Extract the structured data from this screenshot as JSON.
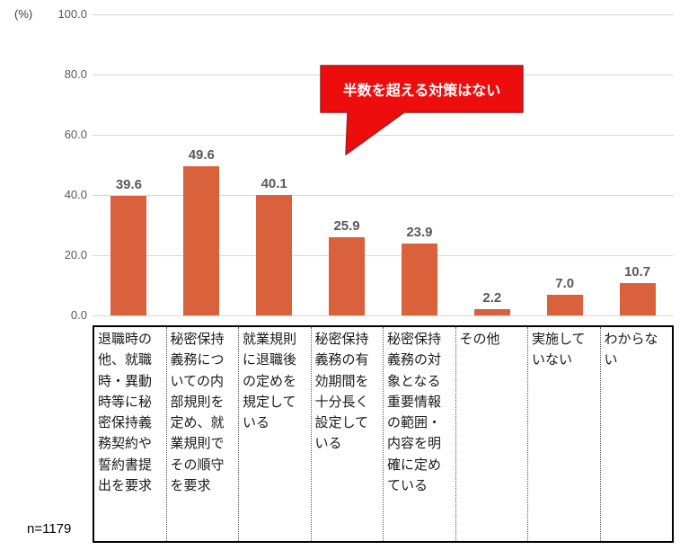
{
  "chart_data": {
    "type": "bar",
    "title": "",
    "unit_label": "(%)",
    "xlabel": "",
    "ylabel": "(%)",
    "ylim": [
      0,
      100
    ],
    "yticks": [
      0,
      20,
      40,
      60,
      80,
      100
    ],
    "ytick_labels": [
      "0.0",
      "20.0",
      "40.0",
      "60.0",
      "80.0",
      "100.0"
    ],
    "grid": true,
    "legend_position": "none",
    "categories": [
      "退職時の他、就職時・異動時等に秘密保持義務契約や誓約書提出を要求",
      "秘密保持義務についての内部規則を定め、就業規則でその順守を要求",
      "就業規則に退職後の定めを規定している",
      "秘密保持義務の有効期間を十分長く設定している",
      "秘密保持義務の対象となる重要情報の範囲・内容を明確に定めている",
      "その他",
      "実施していない",
      "わからない"
    ],
    "values": [
      39.6,
      49.6,
      40.1,
      25.9,
      23.9,
      2.2,
      7.0,
      10.7
    ],
    "value_labels": [
      "39.6",
      "49.6",
      "40.1",
      "25.9",
      "23.9",
      "2.2",
      "7.0",
      "10.7"
    ],
    "colors": {
      "bar": "#d9613b",
      "value_label": "#595959",
      "tick_label": "#595959",
      "gridline": "#d9d9d9"
    }
  },
  "annotation": {
    "callout_text": "半数を超える対策はない",
    "callout_fill": "#ee0d0d",
    "callout_border": "#9c1f1f",
    "callout_text_color": "#ffffff"
  },
  "footer": {
    "sample_size": "n=1179"
  }
}
